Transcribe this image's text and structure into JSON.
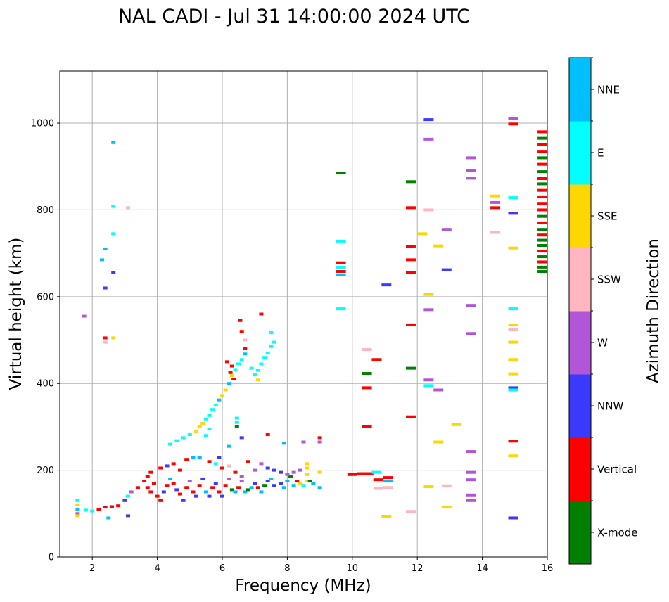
{
  "chart_data": {
    "type": "scatter",
    "title": "NAL CADI - Jul 31 14:00:00 2024 UTC",
    "xlabel": "Frequency (MHz)",
    "ylabel": "Virtual height (km)",
    "xlim": [
      1,
      16
    ],
    "ylim": [
      0,
      1120
    ],
    "xticks": [
      2,
      4,
      6,
      8,
      10,
      12,
      14,
      16
    ],
    "yticks": [
      0,
      200,
      400,
      600,
      800,
      1000
    ],
    "grid": true,
    "colorbar": {
      "label": "Azimuth Direction",
      "categories": [
        {
          "name": "X-mode",
          "color": "#008000"
        },
        {
          "name": "Vertical",
          "color": "#ff0000"
        },
        {
          "name": "NNW",
          "color": "#3a3aff"
        },
        {
          "name": "W",
          "color": "#b256d8"
        },
        {
          "name": "SSW",
          "color": "#ffb6c1"
        },
        {
          "name": "SSE",
          "color": "#ffd700"
        },
        {
          "name": "E",
          "color": "#00ffff"
        },
        {
          "name": "NNE",
          "color": "#00bfff"
        }
      ]
    },
    "points": [
      [
        1.55,
        100,
        "W"
      ],
      [
        1.55,
        110,
        "NNE"
      ],
      [
        1.55,
        120,
        "SSE"
      ],
      [
        1.55,
        130,
        "E"
      ],
      [
        1.55,
        95,
        "SSE"
      ],
      [
        1.8,
        108,
        "E"
      ],
      [
        2.0,
        106,
        "E"
      ],
      [
        2.2,
        110,
        "Vertical"
      ],
      [
        2.4,
        115,
        "Vertical"
      ],
      [
        2.6,
        116,
        "Vertical"
      ],
      [
        2.8,
        118,
        "Vertical"
      ],
      [
        2.5,
        90,
        "NNE"
      ],
      [
        3.1,
        95,
        "NNW"
      ],
      [
        3.0,
        130,
        "NNW"
      ],
      [
        3.1,
        140,
        "E"
      ],
      [
        3.2,
        150,
        "W"
      ],
      [
        3.4,
        160,
        "Vertical"
      ],
      [
        3.6,
        175,
        "Vertical"
      ],
      [
        3.7,
        185,
        "Vertical"
      ],
      [
        3.8,
        195,
        "Vertical"
      ],
      [
        3.9,
        170,
        "Vertical"
      ],
      [
        3.7,
        160,
        "Vertical"
      ],
      [
        3.8,
        150,
        "Vertical"
      ],
      [
        4.0,
        140,
        "Vertical"
      ],
      [
        4.1,
        130,
        "Vertical"
      ],
      [
        4.2,
        150,
        "NNW"
      ],
      [
        4.3,
        165,
        "Vertical"
      ],
      [
        4.4,
        180,
        "NNE"
      ],
      [
        4.5,
        170,
        "Vertical"
      ],
      [
        4.6,
        155,
        "NNW"
      ],
      [
        4.7,
        145,
        "Vertical"
      ],
      [
        4.8,
        130,
        "NNW"
      ],
      [
        4.9,
        160,
        "Vertical"
      ],
      [
        5.0,
        175,
        "W"
      ],
      [
        5.1,
        150,
        "Vertical"
      ],
      [
        5.2,
        140,
        "NNW"
      ],
      [
        5.3,
        165,
        "Vertical"
      ],
      [
        5.4,
        180,
        "NNW"
      ],
      [
        5.5,
        150,
        "NNE"
      ],
      [
        5.6,
        140,
        "NNW"
      ],
      [
        5.7,
        160,
        "Vertical"
      ],
      [
        5.8,
        170,
        "NNW"
      ],
      [
        5.9,
        150,
        "Vertical"
      ],
      [
        6.0,
        140,
        "NNW"
      ],
      [
        6.1,
        165,
        "Vertical"
      ],
      [
        6.2,
        180,
        "W"
      ],
      [
        6.3,
        155,
        "X-mode"
      ],
      [
        6.4,
        150,
        "NNE"
      ],
      [
        6.5,
        160,
        "Vertical"
      ],
      [
        6.6,
        175,
        "W"
      ],
      [
        6.7,
        150,
        "NNE"
      ],
      [
        6.8,
        155,
        "X-mode"
      ],
      [
        6.9,
        160,
        "NNE"
      ],
      [
        7.0,
        170,
        "NNW"
      ],
      [
        7.1,
        160,
        "Vertical"
      ],
      [
        7.2,
        150,
        "NNE"
      ],
      [
        7.3,
        165,
        "X-mode"
      ],
      [
        7.4,
        175,
        "NNW"
      ],
      [
        7.5,
        180,
        "NNE"
      ],
      [
        7.6,
        165,
        "NNW"
      ],
      [
        7.8,
        170,
        "NNW"
      ],
      [
        7.9,
        160,
        "NNE"
      ],
      [
        8.0,
        175,
        "NNE"
      ],
      [
        8.1,
        185,
        "X-mode"
      ],
      [
        8.2,
        165,
        "NNE"
      ],
      [
        8.3,
        175,
        "Vertical"
      ],
      [
        8.4,
        170,
        "SSE"
      ],
      [
        8.5,
        165,
        "E"
      ],
      [
        8.6,
        175,
        "SSE"
      ],
      [
        8.6,
        190,
        "SSE"
      ],
      [
        8.6,
        205,
        "SSE"
      ],
      [
        8.6,
        215,
        "SSE"
      ],
      [
        8.7,
        175,
        "X-mode"
      ],
      [
        8.8,
        170,
        "NNE"
      ],
      [
        9.0,
        160,
        "NNE"
      ],
      [
        9.0,
        195,
        "SSE"
      ],
      [
        9.0,
        265,
        "W"
      ],
      [
        9.0,
        275,
        "Vertical"
      ],
      [
        4.1,
        205,
        "Vertical"
      ],
      [
        4.3,
        210,
        "NNW"
      ],
      [
        4.5,
        215,
        "Vertical"
      ],
      [
        4.7,
        200,
        "Vertical"
      ],
      [
        4.9,
        225,
        "Vertical"
      ],
      [
        5.1,
        230,
        "NNE"
      ],
      [
        5.3,
        230,
        "NNE"
      ],
      [
        5.6,
        220,
        "Vertical"
      ],
      [
        5.8,
        215,
        "E"
      ],
      [
        6.0,
        205,
        "Vertical"
      ],
      [
        6.2,
        210,
        "SSW"
      ],
      [
        6.4,
        195,
        "Vertical"
      ],
      [
        6.6,
        185,
        "W"
      ],
      [
        6.8,
        220,
        "Vertical"
      ],
      [
        7.0,
        200,
        "W"
      ],
      [
        7.2,
        215,
        "W"
      ],
      [
        7.4,
        205,
        "NNW"
      ],
      [
        7.6,
        200,
        "NNW"
      ],
      [
        7.8,
        195,
        "NNW"
      ],
      [
        8.0,
        190,
        "W"
      ],
      [
        8.2,
        195,
        "W"
      ],
      [
        8.4,
        200,
        "W"
      ],
      [
        6.6,
        275,
        "NNW"
      ],
      [
        6.2,
        255,
        "NNE"
      ],
      [
        5.9,
        230,
        "NNW"
      ],
      [
        7.4,
        282,
        "Vertical"
      ],
      [
        7.9,
        262,
        "NNE"
      ],
      [
        8.5,
        265,
        "W"
      ],
      [
        4.4,
        260,
        "E"
      ],
      [
        4.6,
        268,
        "E"
      ],
      [
        4.8,
        275,
        "E"
      ],
      [
        5.0,
        282,
        "E"
      ],
      [
        5.2,
        290,
        "SSE"
      ],
      [
        5.3,
        300,
        "SSE"
      ],
      [
        5.4,
        308,
        "SSE"
      ],
      [
        5.5,
        318,
        "E"
      ],
      [
        5.6,
        326,
        "E"
      ],
      [
        5.7,
        340,
        "E"
      ],
      [
        5.8,
        350,
        "E"
      ],
      [
        5.9,
        362,
        "NNE"
      ],
      [
        6.0,
        372,
        "SSE"
      ],
      [
        6.1,
        385,
        "SSE"
      ],
      [
        6.2,
        400,
        "NNE"
      ],
      [
        6.3,
        418,
        "SSE"
      ],
      [
        6.4,
        432,
        "E"
      ],
      [
        6.5,
        445,
        "E"
      ],
      [
        6.6,
        455,
        "E"
      ],
      [
        6.7,
        468,
        "NNE"
      ],
      [
        5.6,
        295,
        "E"
      ],
      [
        5.5,
        280,
        "E"
      ],
      [
        6.45,
        320,
        "E"
      ],
      [
        6.45,
        310,
        "E"
      ],
      [
        6.45,
        300,
        "X-mode"
      ],
      [
        6.6,
        520,
        "Vertical"
      ],
      [
        6.55,
        545,
        "Vertical"
      ],
      [
        6.7,
        500,
        "SSW"
      ],
      [
        6.7,
        480,
        "Vertical"
      ],
      [
        6.9,
        435,
        "E"
      ],
      [
        7.0,
        420,
        "E"
      ],
      [
        7.1,
        430,
        "E"
      ],
      [
        7.2,
        445,
        "E"
      ],
      [
        7.3,
        460,
        "E"
      ],
      [
        7.4,
        470,
        "E"
      ],
      [
        7.5,
        485,
        "E"
      ],
      [
        7.6,
        495,
        "E"
      ],
      [
        7.1,
        408,
        "SSE"
      ],
      [
        7.2,
        560,
        "Vertical"
      ],
      [
        7.5,
        517,
        "E"
      ],
      [
        6.3,
        440,
        "Vertical"
      ],
      [
        6.25,
        425,
        "Vertical"
      ],
      [
        6.35,
        410,
        "Vertical"
      ],
      [
        6.15,
        450,
        "Vertical"
      ],
      [
        1.75,
        555,
        "W"
      ],
      [
        2.4,
        505,
        "Vertical"
      ],
      [
        2.4,
        495,
        "SSW"
      ],
      [
        2.65,
        505,
        "SSE"
      ],
      [
        2.3,
        685,
        "NNE"
      ],
      [
        2.4,
        710,
        "NNE"
      ],
      [
        2.4,
        620,
        "NNW"
      ],
      [
        2.65,
        655,
        "NNW"
      ],
      [
        2.65,
        745,
        "E"
      ],
      [
        2.65,
        808,
        "E"
      ],
      [
        2.65,
        955,
        "NNE"
      ],
      [
        3.1,
        805,
        "SSW"
      ],
      [
        9.65,
        885,
        "X-mode"
      ],
      [
        9.65,
        728,
        "E"
      ],
      [
        9.65,
        678,
        "Vertical"
      ],
      [
        9.65,
        668,
        "E"
      ],
      [
        9.65,
        658,
        "Vertical"
      ],
      [
        9.65,
        650,
        "NNE"
      ],
      [
        9.65,
        572,
        "E"
      ],
      [
        10.45,
        478,
        "SSW"
      ],
      [
        10.45,
        423,
        "X-mode"
      ],
      [
        10.45,
        390,
        "Vertical"
      ],
      [
        10.45,
        300,
        "Vertical"
      ],
      [
        10.75,
        455,
        "Vertical"
      ],
      [
        11.05,
        627,
        "NNW"
      ],
      [
        10.0,
        190,
        "Vertical"
      ],
      [
        10.3,
        192,
        "Vertical"
      ],
      [
        10.5,
        192,
        "Vertical"
      ],
      [
        10.8,
        178,
        "Vertical"
      ],
      [
        10.8,
        158,
        "SSW"
      ],
      [
        10.75,
        195,
        "E"
      ],
      [
        11.1,
        183,
        "Vertical"
      ],
      [
        11.1,
        175,
        "NNE"
      ],
      [
        11.1,
        160,
        "SSW"
      ],
      [
        11.05,
        93,
        "SSE"
      ],
      [
        11.8,
        105,
        "SSW"
      ],
      [
        11.8,
        865,
        "X-mode"
      ],
      [
        11.8,
        805,
        "Vertical"
      ],
      [
        11.8,
        715,
        "Vertical"
      ],
      [
        11.8,
        685,
        "Vertical"
      ],
      [
        11.8,
        655,
        "Vertical"
      ],
      [
        11.8,
        535,
        "Vertical"
      ],
      [
        11.8,
        435,
        "X-mode"
      ],
      [
        11.8,
        323,
        "Vertical"
      ],
      [
        12.15,
        745,
        "SSE"
      ],
      [
        12.35,
        1008,
        "NNW"
      ],
      [
        12.35,
        963,
        "W"
      ],
      [
        12.35,
        800,
        "SSW"
      ],
      [
        12.35,
        605,
        "SSE"
      ],
      [
        12.35,
        570,
        "W"
      ],
      [
        12.35,
        408,
        "W"
      ],
      [
        12.35,
        395,
        "E"
      ],
      [
        12.35,
        162,
        "SSE"
      ],
      [
        12.65,
        717,
        "SSE"
      ],
      [
        12.65,
        385,
        "W"
      ],
      [
        12.65,
        265,
        "SSE"
      ],
      [
        12.9,
        755,
        "W"
      ],
      [
        12.9,
        662,
        "NNW"
      ],
      [
        12.9,
        164,
        "SSW"
      ],
      [
        12.9,
        115,
        "SSE"
      ],
      [
        13.2,
        305,
        "SSE"
      ],
      [
        13.65,
        920,
        "W"
      ],
      [
        13.65,
        890,
        "W"
      ],
      [
        13.65,
        873,
        "W"
      ],
      [
        13.65,
        580,
        "W"
      ],
      [
        13.65,
        515,
        "W"
      ],
      [
        13.65,
        243,
        "W"
      ],
      [
        13.65,
        195,
        "W"
      ],
      [
        13.65,
        178,
        "W"
      ],
      [
        13.65,
        143,
        "W"
      ],
      [
        13.65,
        130,
        "W"
      ],
      [
        14.4,
        832,
        "SSE"
      ],
      [
        14.4,
        817,
        "W"
      ],
      [
        14.4,
        805,
        "Vertical"
      ],
      [
        14.4,
        748,
        "SSW"
      ],
      [
        14.95,
        1010,
        "W"
      ],
      [
        14.95,
        998,
        "Vertical"
      ],
      [
        14.95,
        828,
        "E"
      ],
      [
        14.95,
        792,
        "NNW"
      ],
      [
        14.95,
        712,
        "SSE"
      ],
      [
        14.95,
        572,
        "E"
      ],
      [
        14.95,
        535,
        "SSE"
      ],
      [
        14.95,
        525,
        "SSW"
      ],
      [
        14.95,
        495,
        "SSE"
      ],
      [
        14.95,
        455,
        "SSE"
      ],
      [
        14.95,
        422,
        "SSE"
      ],
      [
        14.95,
        390,
        "NNW"
      ],
      [
        14.95,
        385,
        "E"
      ],
      [
        14.95,
        267,
        "Vertical"
      ],
      [
        14.95,
        233,
        "SSE"
      ],
      [
        14.95,
        90,
        "NNW"
      ],
      [
        15.85,
        980,
        "Vertical"
      ],
      [
        15.85,
        965,
        "X-mode"
      ],
      [
        15.85,
        950,
        "Vertical"
      ],
      [
        15.85,
        935,
        "Vertical"
      ],
      [
        15.85,
        920,
        "X-mode"
      ],
      [
        15.85,
        905,
        "Vertical"
      ],
      [
        15.85,
        888,
        "X-mode"
      ],
      [
        15.85,
        872,
        "Vertical"
      ],
      [
        15.85,
        860,
        "X-mode"
      ],
      [
        15.85,
        845,
        "Vertical"
      ],
      [
        15.85,
        830,
        "Vertical"
      ],
      [
        15.85,
        815,
        "Vertical"
      ],
      [
        15.85,
        800,
        "Vertical"
      ],
      [
        15.85,
        785,
        "X-mode"
      ],
      [
        15.85,
        770,
        "Vertical"
      ],
      [
        15.85,
        755,
        "X-mode"
      ],
      [
        15.85,
        742,
        "Vertical"
      ],
      [
        15.85,
        730,
        "X-mode"
      ],
      [
        15.85,
        718,
        "X-mode"
      ],
      [
        15.85,
        705,
        "Vertical"
      ],
      [
        15.85,
        692,
        "X-mode"
      ],
      [
        15.85,
        680,
        "Vertical"
      ],
      [
        15.85,
        668,
        "X-mode"
      ],
      [
        15.85,
        658,
        "X-mode"
      ]
    ]
  }
}
